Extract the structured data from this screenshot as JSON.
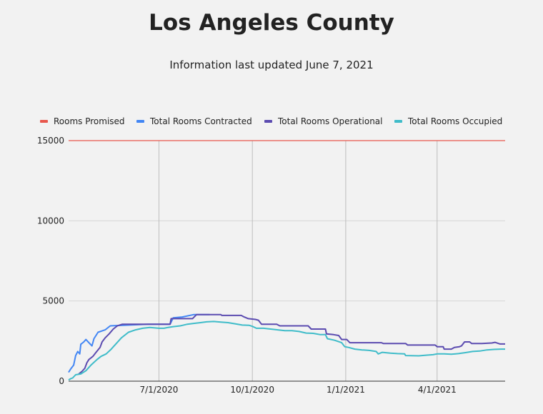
{
  "header": {
    "title": "Los Angeles County",
    "subtitle": "Information last updated June 7, 2021"
  },
  "chart_data": {
    "type": "line",
    "title": "Los Angeles County",
    "subtitle": "Information last updated June 7, 2021",
    "xlabel": "",
    "ylabel": "",
    "xlim": [
      "2020-04-03",
      "2021-06-07"
    ],
    "ylim": [
      0,
      15000
    ],
    "y_ticks": [
      0,
      5000,
      10000,
      15000
    ],
    "x_ticks": [
      {
        "date": "2020-07-01",
        "label": "7/1/2020"
      },
      {
        "date": "2020-10-01",
        "label": "10/1/2020"
      },
      {
        "date": "2021-01-01",
        "label": "1/1/2021"
      },
      {
        "date": "2021-04-01",
        "label": "4/1/2021"
      }
    ],
    "grid": {
      "horizontal": true,
      "vertical": true
    },
    "legend_position": "top",
    "series": [
      {
        "name": "Rooms Promised",
        "color": "#e8574d",
        "points": [
          [
            "2020-04-03",
            15000
          ],
          [
            "2021-06-07",
            15000
          ]
        ]
      },
      {
        "name": "Total Rooms Contracted",
        "color": "#4286f4",
        "points": [
          [
            "2020-04-03",
            550
          ],
          [
            "2020-04-05",
            750
          ],
          [
            "2020-04-08",
            1000
          ],
          [
            "2020-04-10",
            1600
          ],
          [
            "2020-04-12",
            1850
          ],
          [
            "2020-04-14",
            1700
          ],
          [
            "2020-04-15",
            2300
          ],
          [
            "2020-04-18",
            2450
          ],
          [
            "2020-04-20",
            2600
          ],
          [
            "2020-04-23",
            2400
          ],
          [
            "2020-04-26",
            2200
          ],
          [
            "2020-04-28",
            2650
          ],
          [
            "2020-05-02",
            3050
          ],
          [
            "2020-05-09",
            3200
          ],
          [
            "2020-05-14",
            3450
          ],
          [
            "2020-06-20",
            3550
          ],
          [
            "2020-07-12",
            3550
          ],
          [
            "2020-07-15",
            3950
          ],
          [
            "2020-07-24",
            4000
          ],
          [
            "2020-08-04",
            4150
          ],
          [
            "2020-08-20",
            4150
          ]
        ]
      },
      {
        "name": "Total Rooms Operational",
        "color": "#5b4bb0",
        "points": [
          [
            "2020-04-13",
            450
          ],
          [
            "2020-04-16",
            600
          ],
          [
            "2020-04-19",
            800
          ],
          [
            "2020-04-21",
            1150
          ],
          [
            "2020-04-23",
            1350
          ],
          [
            "2020-04-27",
            1550
          ],
          [
            "2020-04-30",
            1800
          ],
          [
            "2020-05-04",
            2100
          ],
          [
            "2020-05-06",
            2450
          ],
          [
            "2020-05-09",
            2700
          ],
          [
            "2020-05-13",
            2950
          ],
          [
            "2020-05-17",
            3250
          ],
          [
            "2020-05-21",
            3450
          ],
          [
            "2020-05-26",
            3550
          ],
          [
            "2020-07-12",
            3550
          ],
          [
            "2020-07-13",
            3900
          ],
          [
            "2020-08-03",
            3900
          ],
          [
            "2020-08-07",
            4150
          ],
          [
            "2020-08-31",
            4150
          ],
          [
            "2020-09-01",
            4100
          ],
          [
            "2020-09-20",
            4100
          ],
          [
            "2020-09-23",
            4000
          ],
          [
            "2020-09-27",
            3900
          ],
          [
            "2020-10-04",
            3850
          ],
          [
            "2020-10-07",
            3800
          ],
          [
            "2020-10-10",
            3550
          ],
          [
            "2020-10-25",
            3550
          ],
          [
            "2020-10-28",
            3450
          ],
          [
            "2020-11-25",
            3450
          ],
          [
            "2020-11-28",
            3250
          ],
          [
            "2020-12-12",
            3250
          ],
          [
            "2020-12-13",
            2950
          ],
          [
            "2020-12-20",
            2900
          ],
          [
            "2020-12-25",
            2850
          ],
          [
            "2020-12-28",
            2600
          ],
          [
            "2021-01-02",
            2600
          ],
          [
            "2021-01-05",
            2400
          ],
          [
            "2021-02-05",
            2400
          ],
          [
            "2021-02-07",
            2350
          ],
          [
            "2021-03-01",
            2350
          ],
          [
            "2021-03-03",
            2250
          ],
          [
            "2021-03-30",
            2250
          ],
          [
            "2021-04-01",
            2150
          ],
          [
            "2021-04-07",
            2150
          ],
          [
            "2021-04-08",
            2000
          ],
          [
            "2021-04-15",
            2000
          ],
          [
            "2021-04-18",
            2100
          ],
          [
            "2021-04-23",
            2150
          ],
          [
            "2021-04-25",
            2200
          ],
          [
            "2021-04-28",
            2450
          ],
          [
            "2021-05-03",
            2450
          ],
          [
            "2021-05-05",
            2350
          ],
          [
            "2021-05-15",
            2350
          ],
          [
            "2021-05-25",
            2380
          ],
          [
            "2021-05-28",
            2420
          ],
          [
            "2021-06-02",
            2320
          ],
          [
            "2021-06-07",
            2320
          ]
        ]
      },
      {
        "name": "Total Rooms Occupied",
        "color": "#3fbcc9",
        "points": [
          [
            "2020-04-03",
            80
          ],
          [
            "2020-04-05",
            150
          ],
          [
            "2020-04-07",
            200
          ],
          [
            "2020-04-10",
            400
          ],
          [
            "2020-04-15",
            450
          ],
          [
            "2020-04-20",
            650
          ],
          [
            "2020-04-25",
            1000
          ],
          [
            "2020-05-01",
            1350
          ],
          [
            "2020-05-05",
            1550
          ],
          [
            "2020-05-10",
            1700
          ],
          [
            "2020-05-15",
            2000
          ],
          [
            "2020-05-20",
            2350
          ],
          [
            "2020-05-25",
            2700
          ],
          [
            "2020-06-01",
            3050
          ],
          [
            "2020-06-08",
            3200
          ],
          [
            "2020-06-15",
            3300
          ],
          [
            "2020-06-22",
            3350
          ],
          [
            "2020-07-01",
            3300
          ],
          [
            "2020-07-06",
            3300
          ],
          [
            "2020-07-10",
            3350
          ],
          [
            "2020-07-15",
            3400
          ],
          [
            "2020-07-22",
            3450
          ],
          [
            "2020-07-29",
            3550
          ],
          [
            "2020-08-04",
            3600
          ],
          [
            "2020-08-11",
            3650
          ],
          [
            "2020-08-17",
            3700
          ],
          [
            "2020-08-24",
            3720
          ],
          [
            "2020-08-31",
            3680
          ],
          [
            "2020-09-07",
            3650
          ],
          [
            "2020-09-14",
            3580
          ],
          [
            "2020-09-21",
            3500
          ],
          [
            "2020-09-28",
            3480
          ],
          [
            "2020-10-01",
            3420
          ],
          [
            "2020-10-05",
            3300
          ],
          [
            "2020-10-12",
            3300
          ],
          [
            "2020-10-19",
            3250
          ],
          [
            "2020-10-26",
            3200
          ],
          [
            "2020-11-02",
            3150
          ],
          [
            "2020-11-09",
            3150
          ],
          [
            "2020-11-16",
            3100
          ],
          [
            "2020-11-23",
            3000
          ],
          [
            "2020-11-30",
            2980
          ],
          [
            "2020-12-07",
            2900
          ],
          [
            "2020-12-12",
            2900
          ],
          [
            "2020-12-14",
            2650
          ],
          [
            "2020-12-21",
            2550
          ],
          [
            "2020-12-28",
            2400
          ],
          [
            "2020-12-31",
            2150
          ],
          [
            "2021-01-04",
            2100
          ],
          [
            "2021-01-10",
            2000
          ],
          [
            "2021-01-17",
            1950
          ],
          [
            "2021-01-24",
            1920
          ],
          [
            "2021-01-31",
            1850
          ],
          [
            "2021-02-02",
            1700
          ],
          [
            "2021-02-06",
            1800
          ],
          [
            "2021-02-14",
            1750
          ],
          [
            "2021-02-21",
            1720
          ],
          [
            "2021-02-28",
            1700
          ],
          [
            "2021-03-01",
            1600
          ],
          [
            "2021-03-14",
            1580
          ],
          [
            "2021-03-21",
            1620
          ],
          [
            "2021-03-28",
            1650
          ],
          [
            "2021-04-01",
            1700
          ],
          [
            "2021-04-08",
            1700
          ],
          [
            "2021-04-15",
            1680
          ],
          [
            "2021-04-22",
            1720
          ],
          [
            "2021-04-29",
            1780
          ],
          [
            "2021-05-06",
            1850
          ],
          [
            "2021-05-13",
            1880
          ],
          [
            "2021-05-20",
            1950
          ],
          [
            "2021-05-27",
            1980
          ],
          [
            "2021-06-03",
            2000
          ],
          [
            "2021-06-07",
            2000
          ]
        ]
      }
    ]
  }
}
